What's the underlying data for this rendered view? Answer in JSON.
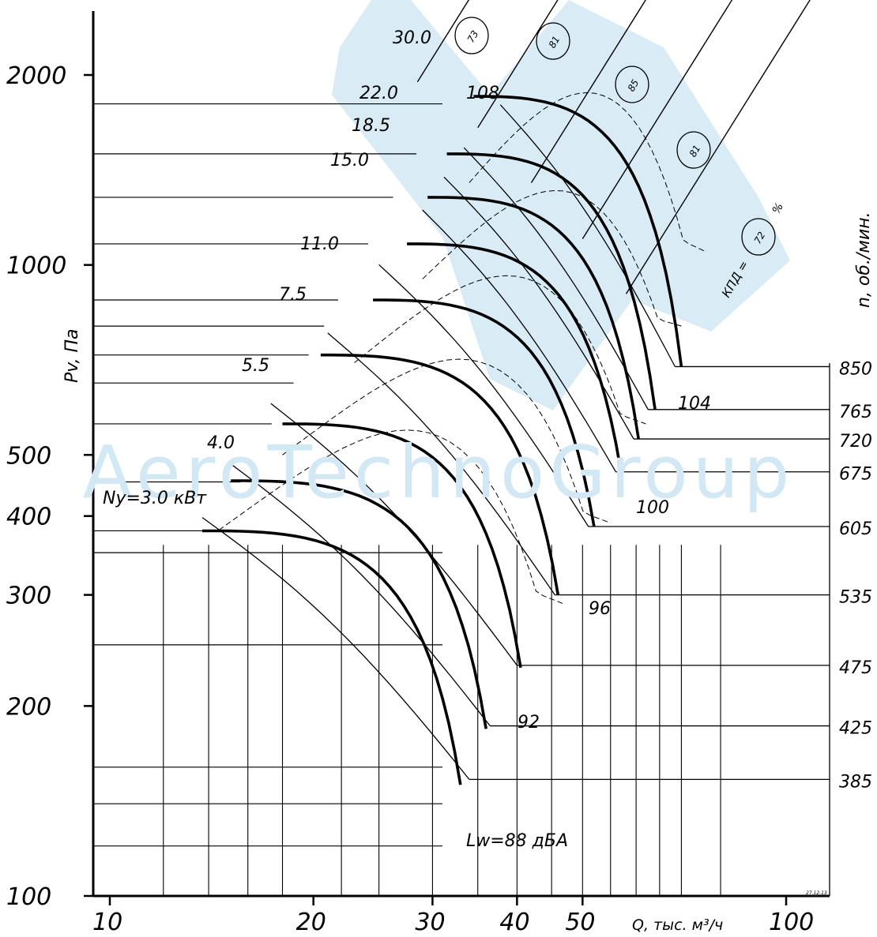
{
  "chart_data": {
    "type": "line",
    "title": "",
    "xlabel": "Q, тыс. м³/ч",
    "ylabel": "Pv, Па",
    "right_axis_label": "n, об./мин.",
    "x_scale": "log",
    "y_scale": "log",
    "xlim": [
      9,
      115
    ],
    "ylim": [
      100,
      2800
    ],
    "x_tick_labels": [
      {
        "value": 10,
        "label": "10"
      },
      {
        "value": 20,
        "label": "20"
      },
      {
        "value": 30,
        "label": "30"
      },
      {
        "value": 40,
        "label": "40"
      },
      {
        "value": 50,
        "label": "50"
      },
      {
        "value": 100,
        "label": "100"
      }
    ],
    "y_tick_labels": [
      {
        "value": 100,
        "label": "100"
      },
      {
        "value": 200,
        "label": "200"
      },
      {
        "value": 300,
        "label": "300"
      },
      {
        "value": 400,
        "label": "400"
      },
      {
        "value": 500,
        "label": "500"
      },
      {
        "value": 1000,
        "label": "1000"
      },
      {
        "value": 2000,
        "label": "2000"
      }
    ],
    "grid": true,
    "speed_lines": [
      {
        "rpm": 385,
        "label": "385",
        "p_max": 354
      },
      {
        "rpm": 425,
        "label": "425",
        "p_max": 432
      },
      {
        "rpm": 475,
        "label": "475",
        "p_max": 540
      },
      {
        "rpm": 535,
        "label": "535",
        "p_max": 685
      },
      {
        "rpm": 605,
        "label": "605",
        "p_max": 876
      },
      {
        "rpm": 675,
        "label": "675",
        "p_max": 1091
      },
      {
        "rpm": 720,
        "label": "720",
        "p_max": 1241
      },
      {
        "rpm": 765,
        "label": "765",
        "p_max": 1401
      },
      {
        "rpm": 850,
        "label": "850",
        "p_max": 1730
      }
    ],
    "motor_power_labels": [
      {
        "kw": 3.0,
        "label": "Ny=3.0 кВт"
      },
      {
        "kw": 4.0,
        "label": "4.0"
      },
      {
        "kw": 5.5,
        "label": "5.5"
      },
      {
        "kw": 7.5,
        "label": "7.5"
      },
      {
        "kw": 11.0,
        "label": "11.0"
      },
      {
        "kw": 15.0,
        "label": "15.0"
      },
      {
        "kw": 18.5,
        "label": "18.5"
      },
      {
        "kw": 22.0,
        "label": "22.0"
      },
      {
        "kw": 30.0,
        "label": "30.0"
      }
    ],
    "noise_labels": [
      {
        "label": "Lw=88 дБА"
      },
      {
        "label": "92"
      },
      {
        "label": "96"
      },
      {
        "label": "100"
      },
      {
        "label": "104"
      },
      {
        "label": "108"
      }
    ],
    "efficiency_label": "КПД =",
    "efficiency_unit": "%",
    "efficiency_values": [
      {
        "label": "73"
      },
      {
        "label": "81"
      },
      {
        "label": "85"
      },
      {
        "label": "81"
      },
      {
        "label": "72"
      }
    ],
    "watermark": "AeroTechnoGroup",
    "code_mark": "27.12.13"
  }
}
